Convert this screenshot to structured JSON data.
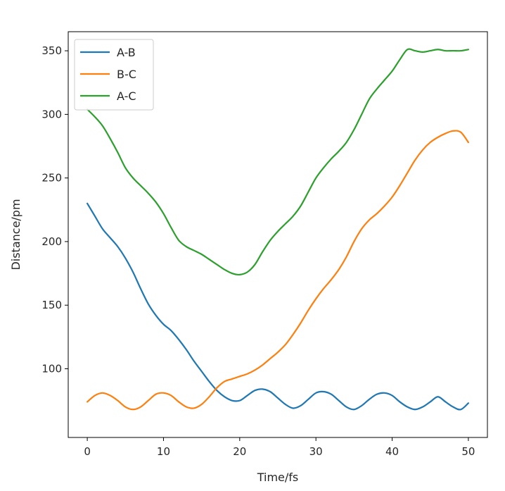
{
  "chart_data": {
    "type": "line",
    "title": "",
    "xlabel": "Time/fs",
    "ylabel": "Distance/pm",
    "xlim": [
      -2.5,
      52.5
    ],
    "ylim": [
      46,
      365
    ],
    "xticks": [
      0,
      10,
      20,
      30,
      40,
      50
    ],
    "yticks": [
      100,
      150,
      200,
      250,
      300,
      350
    ],
    "grid": false,
    "legend_position": "top-left",
    "x": [
      0,
      1,
      2,
      3,
      4,
      5,
      6,
      7,
      8,
      9,
      10,
      11,
      12,
      13,
      14,
      15,
      16,
      17,
      18,
      19,
      20,
      21,
      22,
      23,
      24,
      25,
      26,
      27,
      28,
      29,
      30,
      31,
      32,
      33,
      34,
      35,
      36,
      37,
      38,
      39,
      40,
      41,
      42,
      43,
      44,
      45,
      46,
      47,
      48,
      49,
      50
    ],
    "series": [
      {
        "name": "A-B",
        "color": "#1f77b4",
        "values": [
          230,
          220,
          210,
          203,
          196,
          187,
          176,
          163,
          151,
          142,
          135,
          130,
          123,
          115,
          106,
          98,
          90,
          83,
          78,
          75,
          75,
          79,
          83,
          84,
          82,
          77,
          72,
          69,
          71,
          76,
          81,
          82,
          80,
          75,
          70,
          68,
          71,
          76,
          80,
          81,
          79,
          74,
          70,
          68,
          70,
          74,
          78,
          74,
          70,
          68,
          73
        ]
      },
      {
        "name": "B-C",
        "color": "#ff7f0e",
        "values": [
          74,
          79,
          81,
          79,
          75,
          70,
          68,
          70,
          75,
          80,
          81,
          79,
          74,
          70,
          69,
          72,
          78,
          85,
          90,
          92,
          94,
          96,
          99,
          103,
          108,
          113,
          119,
          127,
          136,
          146,
          155,
          163,
          170,
          178,
          188,
          200,
          210,
          217,
          222,
          228,
          235,
          244,
          254,
          264,
          272,
          278,
          282,
          285,
          287,
          286,
          278
        ]
      },
      {
        "name": "A-C",
        "color": "#2ca02c",
        "values": [
          304,
          298,
          291,
          281,
          270,
          258,
          250,
          244,
          238,
          231,
          222,
          211,
          201,
          196,
          193,
          190,
          186,
          182,
          178,
          175,
          174,
          176,
          182,
          192,
          201,
          208,
          214,
          220,
          228,
          239,
          250,
          258,
          265,
          271,
          278,
          288,
          300,
          312,
          320,
          327,
          334,
          343,
          351,
          350,
          349,
          350,
          351,
          350,
          350,
          350,
          351
        ]
      }
    ]
  }
}
